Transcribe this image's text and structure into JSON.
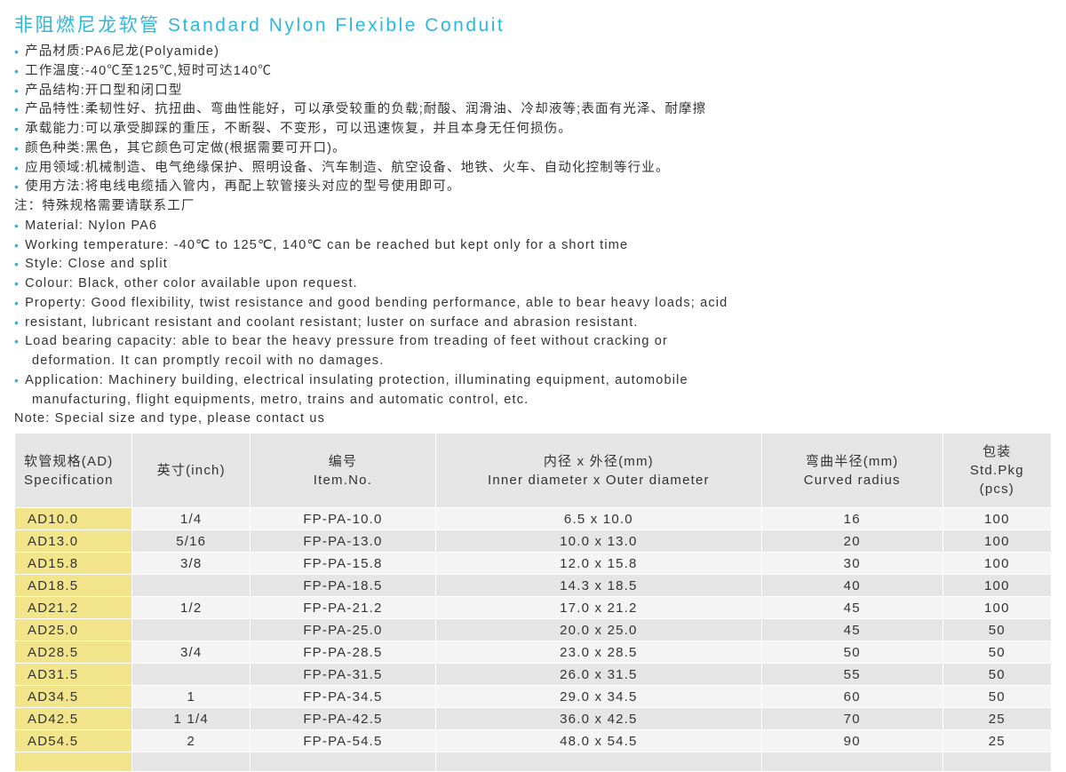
{
  "title": "非阻燃尼龙软管 Standard Nylon Flexible Conduit",
  "bullets_cn": [
    "产品材质:PA6尼龙(Polyamide)",
    "工作温度:-40℃至125℃,短时可达140℃",
    "产品结构:开口型和闭口型",
    "产品特性:柔韧性好、抗扭曲、弯曲性能好，可以承受较重的负载;耐酸、润滑油、冷却液等;表面有光泽、耐摩擦",
    "承载能力:可以承受脚踩的重压，不断裂、不变形，可以迅速恢复，并且本身无任何损伤。",
    "颜色种类:黑色，其它颜色可定做(根据需要可开口)。",
    "应用领域:机械制造、电气绝缘保护、照明设备、汽车制造、航空设备、地铁、火车、自动化控制等行业。",
    "使用方法:将电线电缆插入管内，再配上软管接头对应的型号使用即可。"
  ],
  "note_cn": "注：特殊规格需要请联系工厂",
  "bullets_en": [
    "Material: Nylon PA6",
    "Working temperature: -40℃ to 125℃, 140℃ can be reached but kept only for a short time",
    "Style: Close and split",
    "Colour: Black, other color available upon request.",
    "Property: Good flexibility, twist resistance and good bending performance, able to bear heavy loads; acid",
    "resistant, lubricant resistant and coolant resistant; luster on surface and abrasion resistant.",
    "Load bearing capacity: able to bear the heavy pressure from treading of feet without cracking or"
  ],
  "indent_en": "deformation. It can promptly recoil with no damages.",
  "bullets_en2": [
    "Application: Machinery building, electrical insulating protection, illuminating equipment, automobile"
  ],
  "indent_en2": "manufacturing, flight equipments, metro, trains and automatic control, etc.",
  "note_en": "Note: Special size and type, please contact us",
  "table": {
    "headers": [
      "软管规格(AD)\nSpecification",
      "英寸(inch)",
      "编号\nItem.No.",
      "内径 x 外径(mm)\nInner diameter x Outer diameter",
      "弯曲半径(mm)\nCurved radius",
      "包装\nStd.Pkg\n(pcs)"
    ],
    "rows": [
      [
        "AD10.0",
        "1/4",
        "FP-PA-10.0",
        "6.5 x 10.0",
        "16",
        "100"
      ],
      [
        "AD13.0",
        "5/16",
        "FP-PA-13.0",
        "10.0 x 13.0",
        "20",
        "100"
      ],
      [
        "AD15.8",
        "3/8",
        "FP-PA-15.8",
        "12.0 x 15.8",
        "30",
        "100"
      ],
      [
        "AD18.5",
        "",
        "FP-PA-18.5",
        "14.3 x 18.5",
        "40",
        "100"
      ],
      [
        "AD21.2",
        "1/2",
        "FP-PA-21.2",
        "17.0 x 21.2",
        "45",
        "100"
      ],
      [
        "AD25.0",
        "",
        "FP-PA-25.0",
        "20.0 x 25.0",
        "45",
        "50"
      ],
      [
        "AD28.5",
        "3/4",
        "FP-PA-28.5",
        "23.0 x 28.5",
        "50",
        "50"
      ],
      [
        "AD31.5",
        "",
        "FP-PA-31.5",
        "26.0 x 31.5",
        "55",
        "50"
      ],
      [
        "AD34.5",
        "1",
        "FP-PA-34.5",
        "29.0 x 34.5",
        "60",
        "50"
      ],
      [
        "AD42.5",
        "1 1/4",
        "FP-PA-42.5",
        "36.0 x 42.5",
        "70",
        "25"
      ],
      [
        "AD54.5",
        "2",
        "FP-PA-54.5",
        "48.0 x 54.5",
        "90",
        "25"
      ]
    ]
  },
  "colors": {
    "accent": "#2bb8e0",
    "spec_bg": "#f2e48b",
    "header_bg": "#e5e5e5",
    "row_odd": "#f4f4f4",
    "row_even": "#e5e5e5"
  }
}
